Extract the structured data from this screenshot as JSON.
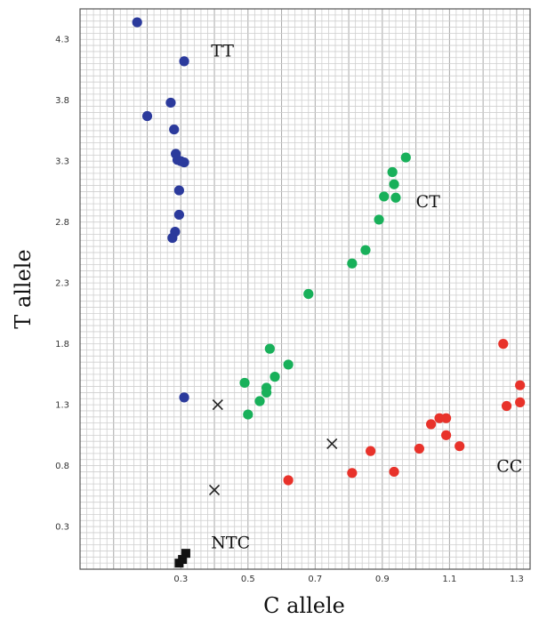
{
  "chart_data": {
    "type": "scatter",
    "title": "",
    "xlabel": "C allele",
    "ylabel": "T allele",
    "xlim": [
      0.0,
      1.34
    ],
    "ylim": [
      -0.05,
      4.55
    ],
    "x_ticks": [
      0.3,
      0.5,
      0.7,
      0.9,
      1.1,
      1.3
    ],
    "y_ticks": [
      0.3,
      0.8,
      1.3,
      1.8,
      2.3,
      2.8,
      3.3,
      3.8,
      4.3
    ],
    "grid": true,
    "colors": {
      "TT": "#2b3a9c",
      "CT": "#18b05a",
      "CC": "#e8322a",
      "undetermined": "#222222",
      "NTC": "#111111"
    },
    "annotations": [
      {
        "text": "TT",
        "x": 0.39,
        "y": 4.16
      },
      {
        "text": "CT",
        "x": 1.0,
        "y": 2.92
      },
      {
        "text": "CC",
        "x": 1.24,
        "y": 0.75
      },
      {
        "text": "NTC",
        "x": 0.39,
        "y": 0.12
      }
    ],
    "series": [
      {
        "key": "TT",
        "marker": "circle",
        "points": [
          [
            0.17,
            4.44
          ],
          [
            0.31,
            4.12
          ],
          [
            0.2,
            3.67
          ],
          [
            0.27,
            3.78
          ],
          [
            0.28,
            3.56
          ],
          [
            0.285,
            3.36
          ],
          [
            0.29,
            3.31
          ],
          [
            0.3,
            3.3
          ],
          [
            0.31,
            3.29
          ],
          [
            0.295,
            3.06
          ],
          [
            0.295,
            2.86
          ],
          [
            0.283,
            2.72
          ],
          [
            0.275,
            2.67
          ],
          [
            0.31,
            1.36
          ]
        ]
      },
      {
        "key": "CT",
        "marker": "circle",
        "points": [
          [
            0.97,
            3.33
          ],
          [
            0.93,
            3.21
          ],
          [
            0.935,
            3.11
          ],
          [
            0.905,
            3.01
          ],
          [
            0.94,
            3.0
          ],
          [
            0.89,
            2.82
          ],
          [
            0.85,
            2.57
          ],
          [
            0.81,
            2.46
          ],
          [
            0.68,
            2.21
          ],
          [
            0.565,
            1.76
          ],
          [
            0.62,
            1.63
          ],
          [
            0.58,
            1.53
          ],
          [
            0.49,
            1.48
          ],
          [
            0.555,
            1.44
          ],
          [
            0.555,
            1.4
          ],
          [
            0.535,
            1.33
          ],
          [
            0.5,
            1.22
          ]
        ]
      },
      {
        "key": "CC",
        "marker": "circle",
        "points": [
          [
            1.26,
            1.8
          ],
          [
            1.31,
            1.46
          ],
          [
            1.31,
            1.32
          ],
          [
            1.27,
            1.29
          ],
          [
            1.07,
            1.19
          ],
          [
            1.09,
            1.19
          ],
          [
            1.045,
            1.14
          ],
          [
            1.09,
            1.05
          ],
          [
            1.13,
            0.96
          ],
          [
            1.01,
            0.94
          ],
          [
            0.865,
            0.92
          ],
          [
            0.935,
            0.75
          ],
          [
            0.81,
            0.74
          ],
          [
            0.62,
            0.68
          ]
        ]
      },
      {
        "key": "undetermined",
        "marker": "x",
        "points": [
          [
            0.41,
            1.3
          ],
          [
            0.75,
            0.98
          ],
          [
            0.4,
            0.6
          ]
        ]
      },
      {
        "key": "NTC",
        "marker": "square",
        "points": [
          [
            0.295,
            0.0
          ],
          [
            0.305,
            0.03
          ],
          [
            0.315,
            0.08
          ]
        ]
      }
    ]
  }
}
